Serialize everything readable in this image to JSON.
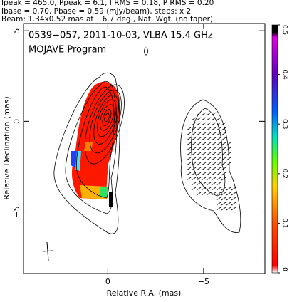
{
  "chart_data": {
    "type": "contour",
    "header": [
      "Ipeak = 465.0, Ppeak = 6.1, I RMS = 0.18, P RMS = 0.20",
      "Ibase = 0.70, Pbase = 0.59 (mJy/beam), steps: x 2",
      "Beam: 1.34x0.52 mas at −6.7 deg., Nat. Wgt. (no taper)"
    ],
    "title": "0539−057, 2011-10-03, VLBA 15.4 GHz",
    "subtitle": "MOJAVE Program",
    "x_label": "Relative R.A. (mas)",
    "y_label": "Relative Declination (mas)",
    "xlim": [
      4.4,
      -8.2
    ],
    "xticks": [
      0,
      {
        "value": -5,
        "label": "−5"
      }
    ],
    "ylim": [
      -8.4,
      5.4
    ],
    "yticks": [
      5,
      0,
      {
        "value": -5,
        "label": "−5"
      }
    ],
    "colorbar": {
      "lim": [
        0,
        0.5
      ],
      "ticks": [
        0,
        0.1,
        0.2,
        0.3,
        0.4,
        0.5
      ]
    }
  }
}
